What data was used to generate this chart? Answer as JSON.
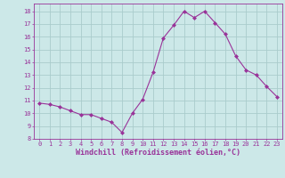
{
  "x": [
    0,
    1,
    2,
    3,
    4,
    5,
    6,
    7,
    8,
    9,
    10,
    11,
    12,
    13,
    14,
    15,
    16,
    17,
    18,
    19,
    20,
    21,
    22,
    23
  ],
  "y": [
    10.8,
    10.7,
    10.5,
    10.2,
    9.9,
    9.9,
    9.6,
    9.3,
    8.5,
    10.0,
    11.1,
    13.2,
    15.9,
    16.9,
    18.0,
    17.5,
    18.0,
    17.1,
    16.2,
    14.5,
    13.4,
    13.0,
    12.1,
    11.3
  ],
  "line_color": "#993399",
  "marker": "D",
  "marker_size": 2.0,
  "background_color": "#cce8e8",
  "grid_color": "#aacccc",
  "xlabel": "Windchill (Refroidissement éolien,°C)",
  "ylabel": "",
  "title": "",
  "xlim": [
    -0.5,
    23.5
  ],
  "ylim": [
    8,
    18.6
  ],
  "yticks": [
    8,
    9,
    10,
    11,
    12,
    13,
    14,
    15,
    16,
    17,
    18
  ],
  "xticks": [
    0,
    1,
    2,
    3,
    4,
    5,
    6,
    7,
    8,
    9,
    10,
    11,
    12,
    13,
    14,
    15,
    16,
    17,
    18,
    19,
    20,
    21,
    22,
    23
  ],
  "tick_color": "#993399",
  "label_color": "#993399",
  "tick_fontsize": 5.0,
  "xlabel_fontsize": 6.0
}
